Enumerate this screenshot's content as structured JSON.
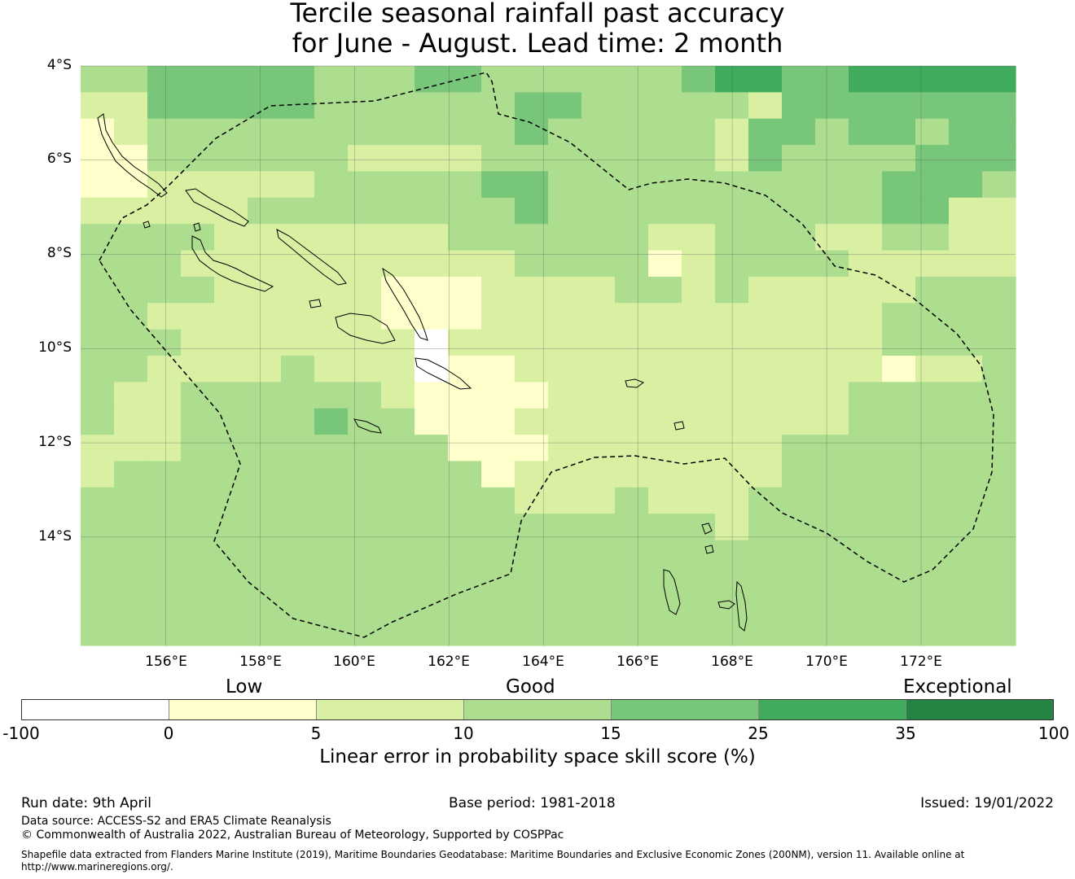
{
  "title": {
    "line1": "Tercile seasonal rainfall past accuracy",
    "line2": "for June - August. Lead time: 2 month"
  },
  "map": {
    "lat_labels": [
      "4°S",
      "6°S",
      "8°S",
      "10°S",
      "12°S",
      "14°S"
    ],
    "lon_labels": [
      "156°E",
      "158°E",
      "160°E",
      "162°E",
      "164°E",
      "166°E",
      "168°E",
      "170°E",
      "172°E"
    ],
    "lon_range": [
      154.2,
      174.0
    ],
    "lat_range": [
      -16.3,
      -4.0
    ],
    "cell_size_deg": [
      0.83,
      0.56
    ],
    "skill_grid": [
      [
        3,
        3,
        4,
        4,
        4,
        4,
        4,
        3,
        3,
        3,
        4,
        4,
        3,
        3,
        3,
        3,
        3,
        3,
        4,
        5,
        5,
        4,
        4,
        5,
        5,
        5,
        5,
        5
      ],
      [
        2,
        2,
        4,
        4,
        4,
        4,
        4,
        3,
        3,
        3,
        3,
        3,
        3,
        4,
        4,
        3,
        3,
        3,
        3,
        3,
        2,
        4,
        4,
        4,
        4,
        4,
        4,
        4
      ],
      [
        1,
        2,
        3,
        3,
        3,
        3,
        3,
        3,
        3,
        3,
        3,
        3,
        3,
        4,
        3,
        3,
        3,
        3,
        3,
        2,
        4,
        4,
        3,
        4,
        4,
        3,
        4,
        4
      ],
      [
        1,
        1,
        3,
        3,
        3,
        3,
        3,
        3,
        2,
        2,
        2,
        2,
        3,
        3,
        3,
        3,
        3,
        3,
        3,
        2,
        4,
        3,
        3,
        3,
        3,
        4,
        4,
        4
      ],
      [
        1,
        1,
        2,
        2,
        2,
        2,
        2,
        3,
        3,
        3,
        3,
        3,
        4,
        4,
        3,
        3,
        3,
        3,
        3,
        3,
        3,
        3,
        3,
        3,
        4,
        4,
        4,
        3
      ],
      [
        2,
        2,
        2,
        2,
        2,
        3,
        3,
        3,
        3,
        3,
        3,
        3,
        3,
        4,
        3,
        3,
        3,
        3,
        3,
        3,
        3,
        3,
        3,
        3,
        4,
        4,
        2,
        2
      ],
      [
        3,
        3,
        3,
        3,
        2,
        2,
        2,
        2,
        2,
        2,
        2,
        3,
        3,
        3,
        3,
        3,
        3,
        2,
        2,
        3,
        3,
        3,
        2,
        2,
        3,
        3,
        2,
        2
      ],
      [
        3,
        3,
        3,
        2,
        2,
        2,
        2,
        2,
        2,
        2,
        2,
        2,
        2,
        3,
        3,
        3,
        3,
        1,
        2,
        3,
        3,
        3,
        3,
        2,
        2,
        2,
        2,
        2
      ],
      [
        3,
        3,
        3,
        3,
        2,
        2,
        2,
        2,
        2,
        1,
        1,
        1,
        2,
        2,
        2,
        2,
        3,
        3,
        2,
        3,
        2,
        2,
        2,
        2,
        2,
        3,
        3,
        3
      ],
      [
        3,
        3,
        2,
        2,
        2,
        2,
        2,
        2,
        2,
        1,
        1,
        1,
        2,
        2,
        2,
        2,
        2,
        2,
        2,
        2,
        2,
        2,
        2,
        2,
        3,
        3,
        3,
        3
      ],
      [
        3,
        3,
        3,
        2,
        2,
        2,
        2,
        2,
        2,
        2,
        0,
        2,
        2,
        2,
        2,
        2,
        2,
        2,
        2,
        2,
        2,
        2,
        2,
        2,
        3,
        3,
        3,
        3
      ],
      [
        3,
        3,
        2,
        2,
        2,
        2,
        3,
        2,
        2,
        2,
        0,
        1,
        1,
        2,
        2,
        2,
        2,
        2,
        2,
        2,
        2,
        2,
        2,
        2,
        1,
        2,
        2,
        3
      ],
      [
        3,
        2,
        2,
        3,
        3,
        3,
        3,
        3,
        3,
        2,
        1,
        1,
        1,
        1,
        2,
        2,
        2,
        2,
        2,
        2,
        2,
        2,
        2,
        3,
        3,
        3,
        3,
        3
      ],
      [
        3,
        2,
        2,
        3,
        3,
        3,
        3,
        4,
        3,
        3,
        1,
        1,
        1,
        2,
        2,
        2,
        2,
        2,
        2,
        2,
        2,
        2,
        2,
        3,
        3,
        3,
        3,
        3
      ],
      [
        2,
        2,
        2,
        3,
        3,
        3,
        3,
        3,
        3,
        3,
        3,
        1,
        1,
        1,
        2,
        2,
        2,
        2,
        2,
        2,
        2,
        3,
        3,
        3,
        3,
        3,
        3,
        3
      ],
      [
        2,
        3,
        3,
        3,
        3,
        3,
        3,
        3,
        3,
        3,
        3,
        3,
        1,
        2,
        2,
        2,
        2,
        2,
        2,
        2,
        2,
        3,
        3,
        3,
        3,
        3,
        3,
        3
      ],
      [
        3,
        3,
        3,
        3,
        3,
        3,
        3,
        3,
        3,
        3,
        3,
        3,
        3,
        2,
        2,
        2,
        3,
        2,
        2,
        2,
        3,
        3,
        3,
        3,
        3,
        3,
        3,
        3
      ],
      [
        3,
        3,
        3,
        3,
        3,
        3,
        3,
        3,
        3,
        3,
        3,
        3,
        3,
        3,
        3,
        3,
        3,
        3,
        3,
        2,
        3,
        3,
        3,
        3,
        3,
        3,
        3,
        3
      ],
      [
        3,
        3,
        3,
        3,
        3,
        3,
        3,
        3,
        3,
        3,
        3,
        3,
        3,
        3,
        3,
        3,
        3,
        3,
        3,
        3,
        3,
        3,
        3,
        3,
        3,
        3,
        3,
        3
      ],
      [
        3,
        3,
        3,
        3,
        3,
        3,
        3,
        3,
        3,
        3,
        3,
        3,
        3,
        3,
        3,
        3,
        3,
        3,
        3,
        3,
        3,
        3,
        3,
        3,
        3,
        3,
        3,
        3
      ],
      [
        3,
        3,
        3,
        3,
        3,
        3,
        3,
        3,
        3,
        3,
        3,
        3,
        3,
        3,
        3,
        3,
        3,
        3,
        3,
        3,
        3,
        3,
        3,
        3,
        3,
        3,
        3,
        3
      ],
      [
        3,
        3,
        3,
        3,
        3,
        3,
        3,
        3,
        3,
        3,
        3,
        3,
        3,
        3,
        3,
        3,
        3,
        3,
        3,
        3,
        3,
        3,
        3,
        3,
        3,
        3,
        3,
        3
      ]
    ]
  },
  "legend": {
    "categories": [
      "Low",
      "Good",
      "Exceptional"
    ],
    "segments": [
      {
        "from": -100,
        "to": 0,
        "color": "#ffffff"
      },
      {
        "from": 0,
        "to": 5,
        "color": "#ffffcc"
      },
      {
        "from": 5,
        "to": 10,
        "color": "#d9f0a3"
      },
      {
        "from": 10,
        "to": 15,
        "color": "#addd8e"
      },
      {
        "from": 15,
        "to": 25,
        "color": "#78c679"
      },
      {
        "from": 25,
        "to": 35,
        "color": "#41ab5d"
      },
      {
        "from": 35,
        "to": 100,
        "color": "#238443"
      }
    ],
    "ticks": [
      "-100",
      "0",
      "5",
      "10",
      "15",
      "25",
      "35",
      "100"
    ],
    "label": "Linear error in probability space skill score (%)"
  },
  "footer": {
    "run_date": "Run date: 9th April",
    "base_period": "Base period: 1981-2018",
    "issued": "Issued: 19/01/2022",
    "data_source": "Data source: ACCESS-S2 and ERA5 Climate Reanalysis",
    "copyright": "© Commonwealth of Australia 2022, Australian Bureau of Meteorology, Supported by COSPPac",
    "shapefile_line1": "Shapefile data extracted from Flanders Marine Institute (2019), Maritime Boundaries Geodatabase: Maritime Boundaries and Exclusive Economic Zones (200NM), version 11. Available online at",
    "shapefile_line2": "http://www.marineregions.org/."
  }
}
